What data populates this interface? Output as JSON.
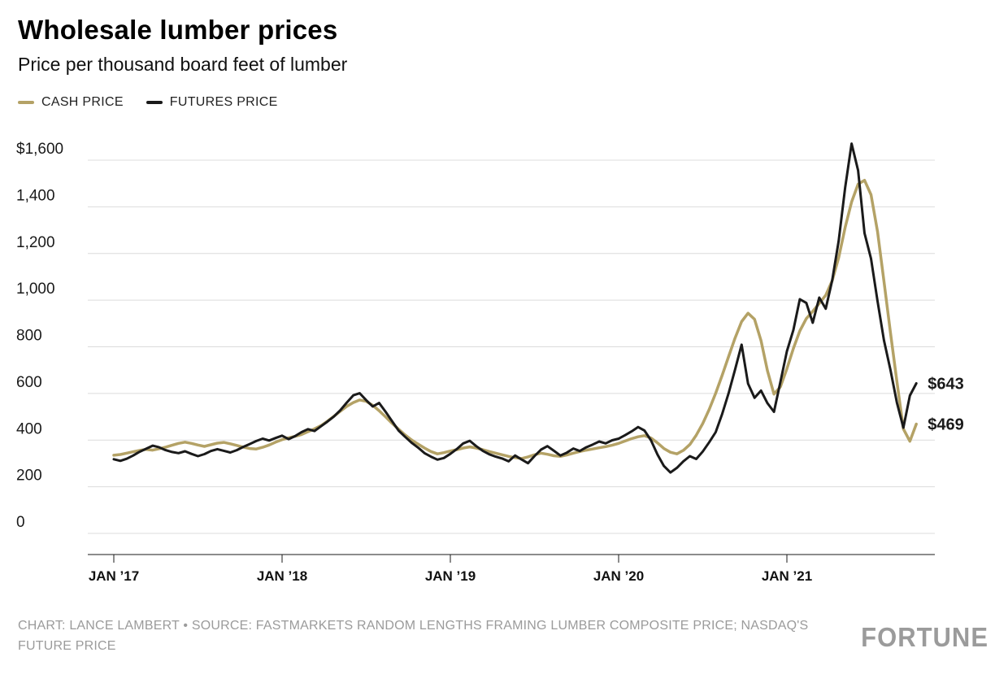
{
  "header": {
    "title": "Wholesale lumber prices",
    "subtitle": "Price per thousand board feet of lumber"
  },
  "legend": [
    {
      "label": "CASH PRICE",
      "color": "#b4a266"
    },
    {
      "label": "FUTURES PRICE",
      "color": "#1a1a1a"
    }
  ],
  "chart_data": {
    "type": "line",
    "title": "Wholesale lumber prices",
    "subtitle": "Price per thousand board feet of lumber",
    "x_unit": "weeks since Jan 2017",
    "ylim": [
      0,
      1600
    ],
    "grid": true,
    "legend_position": "top-left",
    "yticks": [
      {
        "value": 1600,
        "label": "$1,600"
      },
      {
        "value": 1400,
        "label": "1,400"
      },
      {
        "value": 1200,
        "label": "1,200"
      },
      {
        "value": 1000,
        "label": "1,000"
      },
      {
        "value": 800,
        "label": "800"
      },
      {
        "value": 600,
        "label": "600"
      },
      {
        "value": 400,
        "label": "400"
      },
      {
        "value": 200,
        "label": "200"
      },
      {
        "value": 0,
        "label": "0"
      }
    ],
    "xticks": [
      {
        "week": 0,
        "label": "JAN ’17"
      },
      {
        "week": 52,
        "label": "JAN ’18"
      },
      {
        "week": 104,
        "label": "JAN ’19"
      },
      {
        "week": 156,
        "label": "JAN ’20"
      },
      {
        "week": 208,
        "label": "JAN ’21"
      }
    ],
    "x": [
      0,
      2,
      4,
      6,
      8,
      10,
      12,
      14,
      16,
      18,
      20,
      22,
      24,
      26,
      28,
      30,
      32,
      34,
      36,
      38,
      40,
      42,
      44,
      46,
      48,
      50,
      52,
      54,
      56,
      58,
      60,
      62,
      64,
      66,
      68,
      70,
      72,
      74,
      76,
      78,
      80,
      82,
      84,
      86,
      88,
      90,
      92,
      94,
      96,
      98,
      100,
      102,
      104,
      106,
      108,
      110,
      112,
      114,
      116,
      118,
      120,
      122,
      124,
      126,
      128,
      130,
      132,
      134,
      136,
      138,
      140,
      142,
      144,
      146,
      148,
      150,
      152,
      154,
      156,
      158,
      160,
      162,
      164,
      166,
      168,
      170,
      172,
      174,
      176,
      178,
      180,
      182,
      184,
      186,
      188,
      190,
      192,
      194,
      196,
      198,
      200,
      202,
      204,
      206,
      208,
      210,
      212,
      214,
      216,
      218,
      220,
      222,
      224,
      226,
      228,
      230,
      232,
      234,
      236,
      238,
      240,
      242,
      244,
      246,
      248
    ],
    "series": [
      {
        "name": "Cash price",
        "color": "#b4a266",
        "end_label": "$469",
        "end_value": 469,
        "values": [
          335,
          338,
          344,
          350,
          356,
          360,
          357,
          363,
          370,
          378,
          386,
          391,
          386,
          379,
          373,
          380,
          387,
          390,
          384,
          377,
          370,
          364,
          362,
          369,
          379,
          391,
          402,
          410,
          416,
          424,
          436,
          448,
          462,
          481,
          502,
          524,
          545,
          561,
          572,
          566,
          549,
          526,
          499,
          472,
          447,
          422,
          401,
          383,
          366,
          351,
          341,
          346,
          353,
          359,
          366,
          371,
          366,
          359,
          351,
          344,
          337,
          330,
          325,
          321,
          328,
          337,
          344,
          339,
          333,
          330,
          336,
          344,
          351,
          357,
          362,
          367,
          372,
          378,
          386,
          396,
          406,
          414,
          419,
          409,
          388,
          364,
          348,
          341,
          356,
          381,
          421,
          471,
          532,
          601,
          678,
          758,
          838,
          908,
          944,
          918,
          826,
          697,
          597,
          628,
          706,
          793,
          868,
          921,
          952,
          986,
          1021,
          1083,
          1182,
          1312,
          1421,
          1497,
          1514,
          1452,
          1294,
          1081,
          861,
          652,
          448,
          395,
          469
        ]
      },
      {
        "name": "Futures price",
        "color": "#1a1a1a",
        "end_label": "$643",
        "end_value": 643,
        "values": [
          318,
          311,
          320,
          334,
          350,
          363,
          376,
          369,
          357,
          349,
          344,
          352,
          341,
          331,
          340,
          353,
          361,
          354,
          347,
          357,
          371,
          383,
          396,
          406,
          398,
          409,
          419,
          404,
          417,
          434,
          447,
          439,
          459,
          479,
          501,
          528,
          561,
          592,
          601,
          571,
          544,
          559,
          521,
          481,
          441,
          414,
          389,
          368,
          344,
          329,
          316,
          323,
          341,
          362,
          386,
          397,
          374,
          354,
          339,
          329,
          321,
          309,
          334,
          317,
          301,
          331,
          359,
          374,
          354,
          334,
          346,
          364,
          353,
          369,
          381,
          394,
          386,
          399,
          406,
          421,
          437,
          456,
          441,
          399,
          338,
          289,
          261,
          281,
          309,
          331,
          319,
          351,
          391,
          434,
          512,
          601,
          703,
          809,
          642,
          581,
          612,
          558,
          521,
          649,
          781,
          872,
          1004,
          988,
          903,
          1011,
          963,
          1084,
          1254,
          1483,
          1671,
          1556,
          1287,
          1178,
          996,
          828,
          701,
          561,
          453,
          591,
          643
        ]
      }
    ]
  },
  "footer": {
    "credit": "CHART: LANCE LAMBERT • SOURCE: FASTMARKETS RANDOM LENGTHS FRAMING LUMBER COMPOSITE PRICE; NASDAQ'S FUTURE PRICE",
    "logo": "FORTUNE"
  },
  "colors": {
    "cash": "#b4a266",
    "futures": "#1a1a1a",
    "grid": "#dcdcdc",
    "axis": "#1a1a1a",
    "muted_text": "#9b9b9b"
  }
}
